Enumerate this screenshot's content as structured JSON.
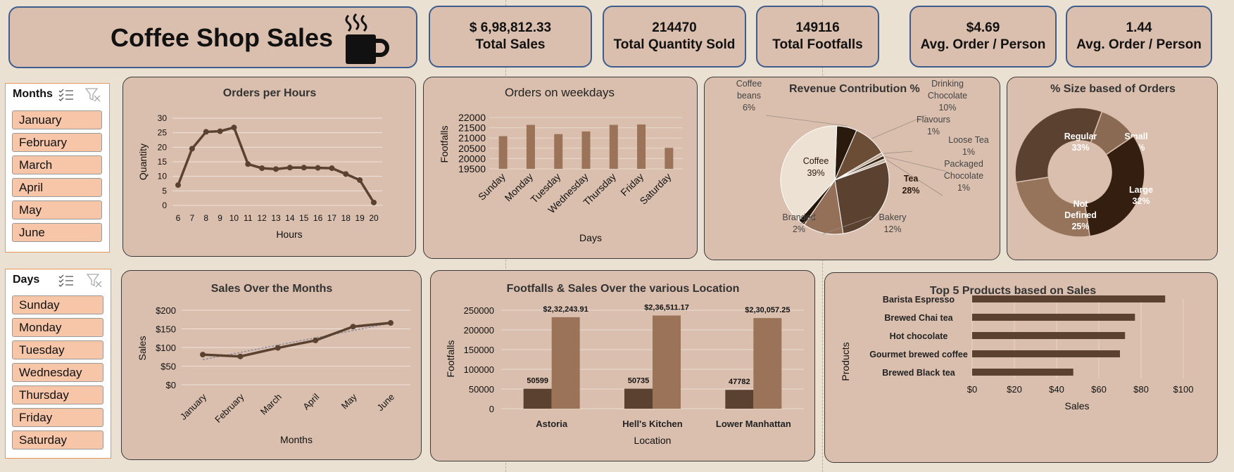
{
  "header": {
    "title": "Coffee Shop Sales",
    "logo_icon": "coffee-mug-icon"
  },
  "kpis": [
    {
      "value": "$ 6,98,812.33",
      "label": "Total Sales"
    },
    {
      "value": "214470",
      "label": "Total Quantity Sold"
    },
    {
      "value": "149116",
      "label": "Total Footfalls"
    },
    {
      "value": "$4.69",
      "label": "Avg. Order / Person"
    },
    {
      "value": "1.44",
      "label": "Avg. Order / Person"
    }
  ],
  "slicers": {
    "months": {
      "title": "Months",
      "items": [
        "January",
        "February",
        "March",
        "April",
        "May",
        "June"
      ]
    },
    "days": {
      "title": "Days",
      "items": [
        "Sunday",
        "Monday",
        "Tuesday",
        "Wednesday",
        "Thursday",
        "Friday",
        "Saturday"
      ]
    }
  },
  "colors": {
    "dark": "#5b4130",
    "medium": "#9a7358",
    "light": "#e9dccb",
    "darkest": "#2e1c10",
    "card": "#dbbfae"
  },
  "chart_data": [
    {
      "id": "orders-per-hours",
      "type": "line",
      "title": "Orders per Hours",
      "xlabel": "Hours",
      "ylabel": "Quantity",
      "x": [
        "6",
        "7",
        "8",
        "9",
        "10",
        "11",
        "12",
        "13",
        "14",
        "15",
        "16",
        "17",
        "18",
        "19",
        "20"
      ],
      "values": [
        7,
        19.5,
        25.3,
        25.5,
        26.8,
        14.2,
        12.8,
        12.5,
        13,
        13,
        12.9,
        12.8,
        10.8,
        8.7,
        1
      ],
      "ylim": [
        0,
        30
      ],
      "yticks": [
        "0",
        "5",
        "10",
        "15",
        "20",
        "25",
        "30"
      ],
      "grid": true
    },
    {
      "id": "orders-on-weekdays",
      "type": "bar",
      "title": "Orders on weekdays",
      "xlabel": "Days",
      "ylabel": "Footfalls",
      "categories": [
        "Sunday",
        "Monday",
        "Tuesday",
        "Wednesday",
        "Thursday",
        "Friday",
        "Saturday"
      ],
      "values": [
        21090,
        21640,
        21190,
        21320,
        21640,
        21660,
        20520
      ],
      "ylim": [
        19500,
        22000
      ],
      "yticks": [
        "19500",
        "20000",
        "20500",
        "21000",
        "21500",
        "22000"
      ],
      "grid": true
    },
    {
      "id": "revenue-contribution",
      "type": "pie",
      "title": "Revenue Contribution %",
      "slices": [
        {
          "label": "Coffee beans",
          "value": 6,
          "display": "6%"
        },
        {
          "label": "Drinking Chocolate",
          "value": 10,
          "display": "10%"
        },
        {
          "label": "Flavours",
          "value": 1,
          "display": "1%"
        },
        {
          "label": "Loose Tea",
          "value": 1,
          "display": "1%"
        },
        {
          "label": "Packaged Chocolate",
          "value": 1,
          "display": "1%"
        },
        {
          "label": "Tea",
          "value": 28,
          "display": "28%"
        },
        {
          "label": "Bakery",
          "value": 12,
          "display": "12%"
        },
        {
          "label": "Branded",
          "value": 2,
          "display": "2%"
        },
        {
          "label": "Coffee",
          "value": 39,
          "display": "39%"
        }
      ]
    },
    {
      "id": "size-based-orders",
      "type": "pie",
      "title": "% Size based of Orders",
      "slices": [
        {
          "label": "Small",
          "value": 10,
          "display": "10%"
        },
        {
          "label": "Large",
          "value": 32,
          "display": "32%"
        },
        {
          "label": "Not Defined",
          "value": 25,
          "display": "25%"
        },
        {
          "label": "Regular",
          "value": 33,
          "display": "33%"
        }
      ]
    },
    {
      "id": "sales-over-months",
      "type": "line",
      "title": "Sales Over the Months",
      "xlabel": "Months",
      "ylabel": "Sales",
      "x": [
        "January",
        "February",
        "March",
        "April",
        "May",
        "June"
      ],
      "values": [
        81,
        76,
        99,
        119,
        156,
        166
      ],
      "trendline": true,
      "ylim": [
        0,
        200
      ],
      "yticks": [
        "$0",
        "$50",
        "$100",
        "$150",
        "$200"
      ],
      "grid": true
    },
    {
      "id": "footfalls-sales-location",
      "type": "bar",
      "title": "Footfalls & Sales Over the various Location",
      "xlabel": "Location",
      "ylabel": "Footfalls",
      "categories": [
        "Astoria",
        "Hell's Kitchen",
        "Lower Manhattan"
      ],
      "series": [
        {
          "values": [
            50599,
            50735,
            47782
          ],
          "labels": [
            "50599",
            "50735",
            "47782"
          ]
        },
        {
          "values": [
            232243.91,
            236511.17,
            230057.25
          ],
          "labels": [
            "$2,32,243.91",
            "$2,36,511.17",
            "$2,30,057.25"
          ]
        }
      ],
      "ylim": [
        0,
        250000
      ],
      "yticks": [
        "0",
        "50000",
        "100000",
        "150000",
        "200000",
        "250000"
      ],
      "grid": true
    },
    {
      "id": "top-5-products",
      "type": "bar",
      "orientation": "horizontal",
      "title": "Top 5 Products based on Sales",
      "xlabel": "Sales",
      "ylabel": "Products",
      "categories": [
        "Barista Espresso",
        "Brewed Chai tea",
        "Hot chocolate",
        "Gourmet brewed coffee",
        "Brewed Black tea"
      ],
      "values": [
        91.4,
        77.1,
        72.4,
        70.0,
        47.9
      ],
      "xlim": [
        0,
        100
      ],
      "xticks": [
        "$0",
        "$20",
        "$40",
        "$60",
        "$80",
        "$100"
      ],
      "grid": true
    }
  ]
}
